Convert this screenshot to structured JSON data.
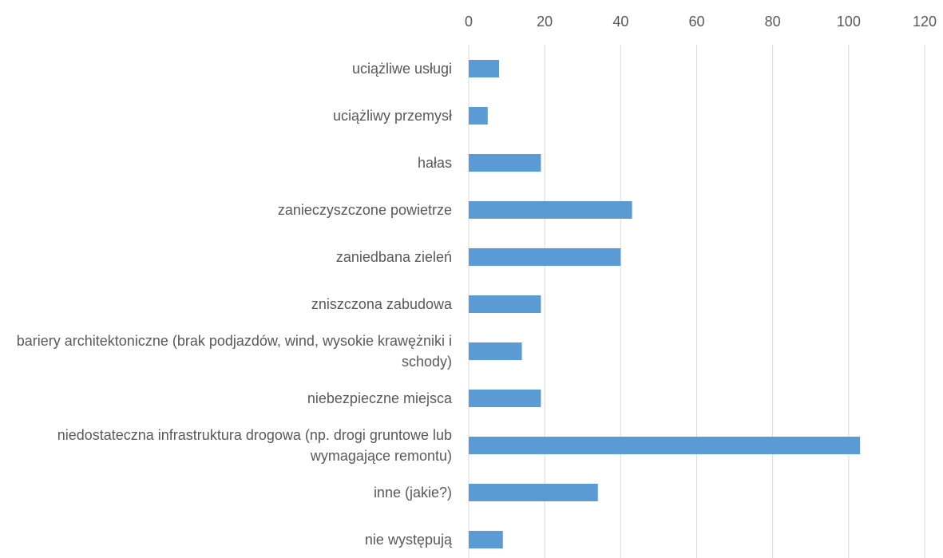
{
  "chart_data": {
    "type": "bar",
    "orientation": "horizontal",
    "categories": [
      "uciążliwe usługi",
      "uciążliwy przemysł",
      "hałas",
      "zanieczyszczone powietrze",
      "zaniedbana zieleń",
      "zniszczona zabudowa",
      "bariery architektoniczne (brak podjazdów, wind, wysokie krawężniki i schody)",
      "niebezpieczne miejsca",
      "niedostateczna infrastruktura drogowa (np. drogi gruntowe lub wymagające remontu)",
      "inne (jakie?)",
      "nie występują"
    ],
    "values": [
      8,
      5,
      19,
      43,
      40,
      19,
      14,
      19,
      103,
      34,
      9
    ],
    "color": "#5b9bd5",
    "xlim": [
      0,
      120
    ],
    "xticks": [
      0,
      20,
      40,
      60,
      80,
      100,
      120
    ],
    "grid": true
  }
}
